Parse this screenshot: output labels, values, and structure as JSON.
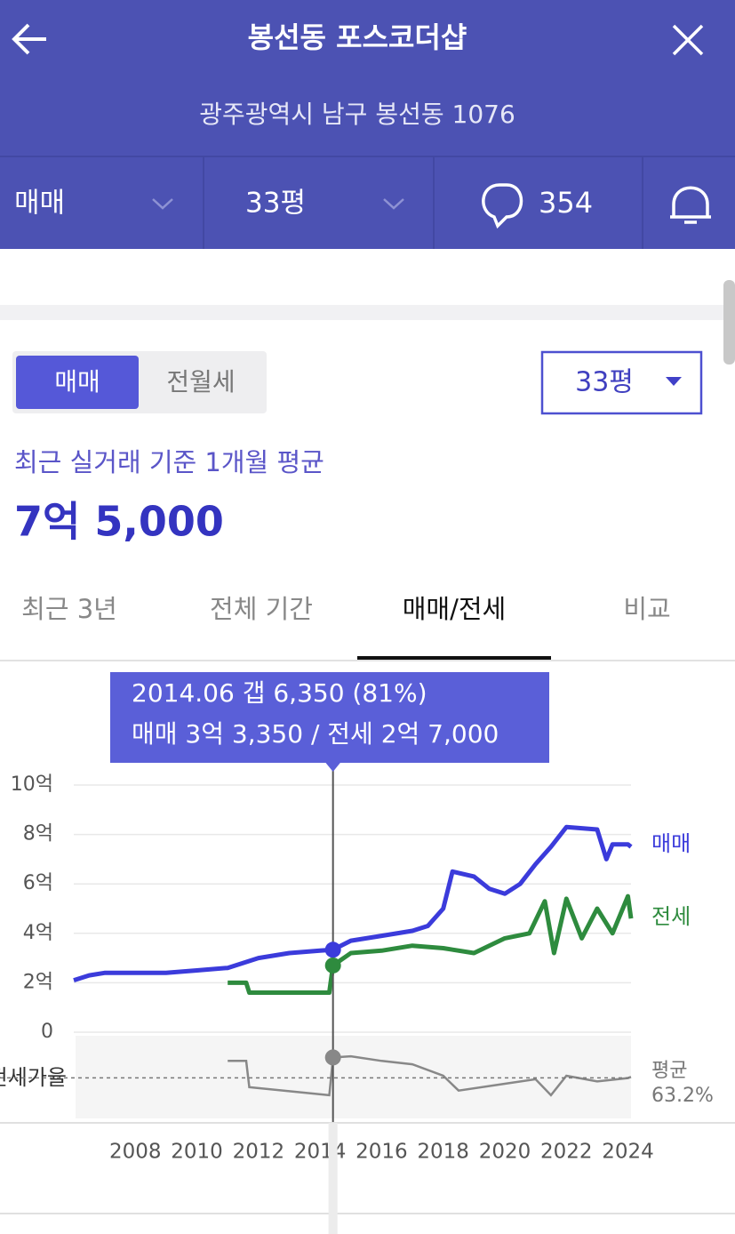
{
  "header": {
    "title": "봉선동 포스코더샵",
    "address": "광주광역시 남구 봉선동 1076"
  },
  "toolbar": {
    "deal": "매매",
    "size": "33평",
    "comments": "354"
  },
  "toggle": {
    "options": [
      "매매",
      "전월세"
    ],
    "size": "33평"
  },
  "summary": {
    "caption": "최근 실거래 기준 1개월 평균",
    "price": "7억 5,000"
  },
  "tabs": [
    "최근 3년",
    "전체 기간",
    "매매/전세",
    "비교"
  ],
  "tooltip": {
    "line1": "2014.06  갭 6,350 (81%)",
    "line2": "매매 3억 3,350 / 전세 2억 7,000"
  },
  "chart": {
    "type": "line",
    "xlim": [
      2006,
      2024.1
    ],
    "xticks": [
      2008,
      2010,
      2012,
      2014,
      2016,
      2018,
      2020,
      2022,
      2024
    ],
    "ylim": [
      0,
      10
    ],
    "yticks": [
      0,
      {
        "value": 2,
        "label": "2억"
      },
      {
        "value": 4,
        "label": "4억"
      },
      {
        "value": 6,
        "label": "6억"
      },
      {
        "value": 8,
        "label": "8억"
      },
      {
        "value": 10,
        "label": "10억"
      }
    ],
    "grid": true,
    "series": [
      {
        "name": "매매",
        "color": "#3b3bdb",
        "x": [
          2006.0,
          2006.5,
          2007,
          2008,
          2009,
          2010,
          2011,
          2012,
          2013,
          2014.0,
          2014.42,
          2015,
          2016,
          2017,
          2017.5,
          2018,
          2018.3,
          2019,
          2019.5,
          2020,
          2020.5,
          2021,
          2021.5,
          2022,
          2023,
          2023.3,
          2023.5,
          2024,
          2024.1
        ],
        "values": [
          2.1,
          2.3,
          2.4,
          2.4,
          2.4,
          2.5,
          2.6,
          3.0,
          3.2,
          3.3,
          3.335,
          3.7,
          3.9,
          4.1,
          4.3,
          5.0,
          6.5,
          6.3,
          5.8,
          5.6,
          6.0,
          6.8,
          7.5,
          8.3,
          8.2,
          7.0,
          7.6,
          7.6,
          7.5
        ]
      },
      {
        "name": "전세",
        "color": "#2e8b3e",
        "x": [
          2011,
          2011.6,
          2011.7,
          2014.3,
          2014.42,
          2015,
          2016,
          2017,
          2018,
          2019,
          2020,
          2020.8,
          2021.3,
          2021.6,
          2022,
          2022.5,
          2023,
          2023.5,
          2024,
          2024.1
        ],
        "values": [
          2.0,
          2.0,
          1.6,
          1.6,
          2.7,
          3.2,
          3.3,
          3.5,
          3.4,
          3.2,
          3.8,
          4.0,
          5.3,
          3.2,
          5.4,
          3.8,
          5.0,
          4.0,
          5.5,
          4.6
        ]
      }
    ],
    "ratio": {
      "label": "전세가율",
      "ylim": [
        30,
        100
      ],
      "x": [
        2011,
        2011.6,
        2011.7,
        2014.3,
        2014.42,
        2015,
        2016,
        2017,
        2018,
        2018.5,
        2020,
        2021,
        2021.5,
        2022,
        2023,
        2024,
        2024.1
      ],
      "values": [
        78,
        78,
        55,
        48,
        81,
        82,
        78,
        75,
        65,
        52,
        58,
        62,
        48,
        65,
        60,
        63,
        64
      ],
      "mean_name": "평균",
      "mean": {
        "value": 63.2,
        "label": "63.2%"
      }
    },
    "cursor": {
      "x": 2014.42,
      "sale": 3.335,
      "jeonse": 2.7,
      "ratio": 81
    }
  }
}
